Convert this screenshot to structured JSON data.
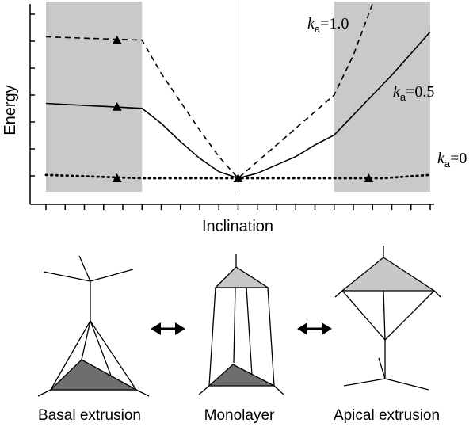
{
  "chart_data": {
    "type": "line",
    "title": "",
    "xlabel": "Inclination",
    "ylabel": "Energy",
    "xlim": [
      -1,
      1
    ],
    "ylim": [
      0,
      1
    ],
    "grid": false,
    "x_tick_count": 21,
    "y_tick_count": 7,
    "shaded_regions": [
      [
        -1,
        -0.5
      ],
      [
        0.5,
        1
      ]
    ],
    "reference_line_x": 0,
    "series": [
      {
        "name_prefix": "k",
        "name_sub": "a",
        "name_value": "=1.0",
        "style": "dashed",
        "x": [
          -1,
          -0.5,
          -0.4,
          -0.3,
          -0.2,
          -0.1,
          0,
          0.1,
          0.2,
          0.3,
          0.4,
          0.5,
          0.6,
          0.7
        ],
        "y": [
          0.85,
          0.83,
          0.63,
          0.46,
          0.29,
          0.13,
          0,
          0.1,
          0.2,
          0.3,
          0.4,
          0.5,
          0.74,
          1.05
        ],
        "markers": [
          {
            "x": -0.63,
            "y": 0.83
          }
        ]
      },
      {
        "name_prefix": "k",
        "name_sub": "a",
        "name_value": "=0.5",
        "style": "solid",
        "x": [
          -1,
          -0.5,
          -0.4,
          -0.3,
          -0.2,
          -0.1,
          0,
          0.1,
          0.2,
          0.3,
          0.4,
          0.5,
          0.6,
          0.7,
          0.8,
          0.9,
          1.0
        ],
        "y": [
          0.45,
          0.42,
          0.33,
          0.22,
          0.12,
          0.04,
          0,
          0.03,
          0.08,
          0.13,
          0.2,
          0.26,
          0.38,
          0.5,
          0.62,
          0.75,
          0.88
        ],
        "markers": [
          {
            "x": -0.63,
            "y": 0.43
          }
        ]
      },
      {
        "name_prefix": "k",
        "name_sub": "a",
        "name_value": "=0",
        "style": "dotted",
        "x": [
          -1,
          -0.75,
          -0.5,
          -0.25,
          0,
          0.25,
          0.5,
          0.75,
          1.0
        ],
        "y": [
          0.02,
          0.01,
          0.0,
          0.0,
          0.0,
          0.0,
          0.0,
          0.0,
          0.02
        ],
        "markers": [
          {
            "x": -0.63,
            "y": 0.0
          },
          {
            "x": 0.68,
            "y": 0.0
          }
        ]
      }
    ]
  },
  "diagrams": {
    "basal": "Basal extrusion",
    "monolayer": "Monolayer",
    "apical": "Apical extrusion"
  },
  "colors": {
    "shade": "#c9c9c9",
    "apical_face": "#c8c8c8",
    "basal_face": "#6e6e6e",
    "ink": "#000000"
  }
}
